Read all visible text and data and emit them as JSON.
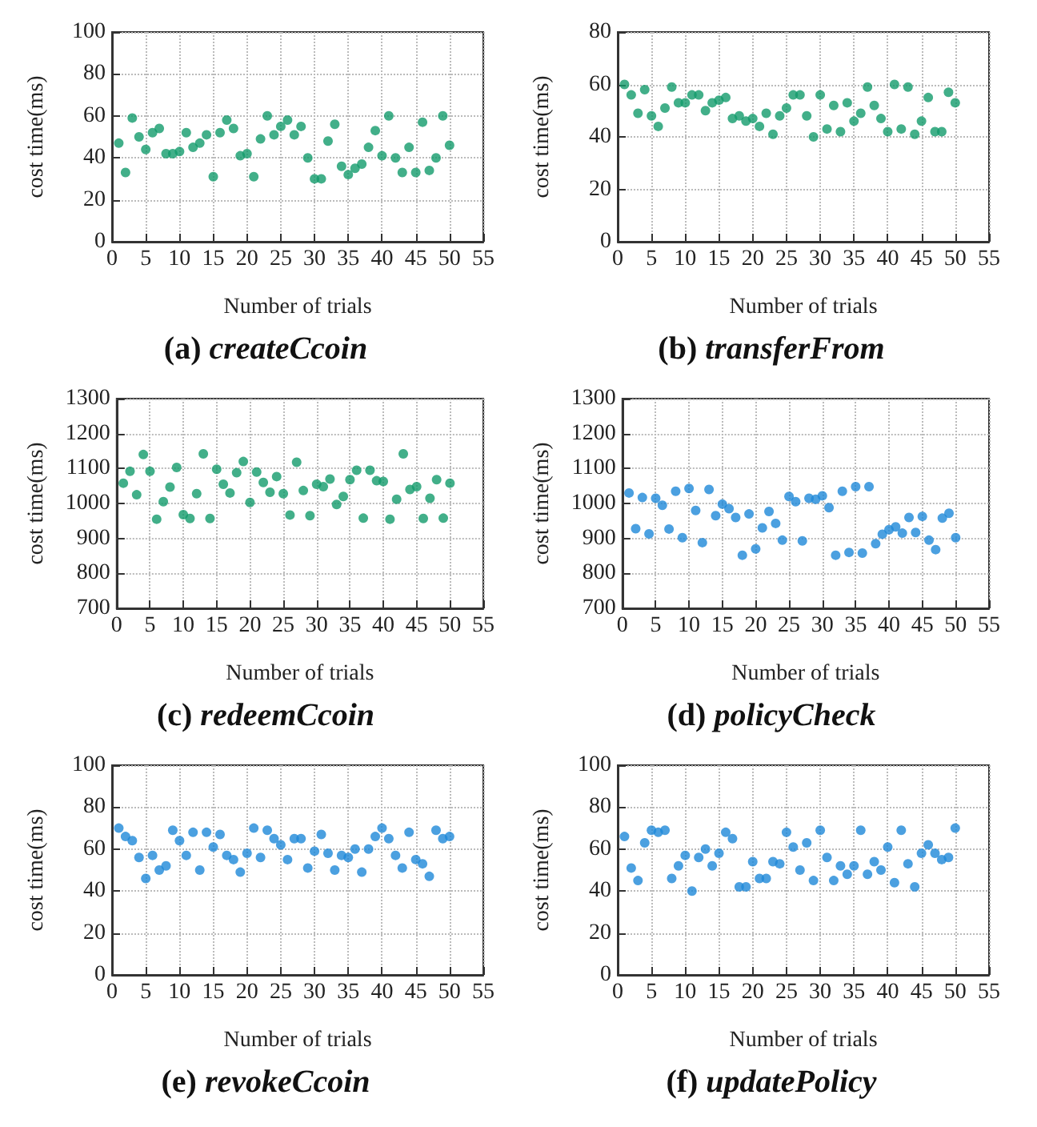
{
  "chart_data": [
    {
      "type": "scatter",
      "title": "(a) createCcoin",
      "xlabel": "Number of trials",
      "ylabel": "cost time(ms)",
      "xlim": [
        0,
        55
      ],
      "xticks": [
        0,
        5,
        10,
        15,
        20,
        25,
        30,
        35,
        40,
        45,
        50,
        55
      ],
      "ylim": [
        0,
        100
      ],
      "yticks": [
        0,
        20,
        40,
        60,
        80,
        100
      ],
      "grid": true,
      "marker": "circle",
      "x": [
        1,
        2,
        3,
        4,
        5,
        6,
        7,
        8,
        9,
        10,
        11,
        12,
        13,
        14,
        15,
        16,
        17,
        18,
        19,
        20,
        21,
        22,
        23,
        24,
        25,
        26,
        27,
        28,
        29,
        30,
        31,
        32,
        33,
        34,
        35,
        36,
        37,
        38,
        39,
        40,
        41,
        42,
        43,
        44,
        45,
        46,
        47,
        48,
        49,
        50
      ],
      "series": [
        {
          "color": "#139b6b",
          "values": [
            47,
            33,
            59,
            50,
            44,
            52,
            54,
            42,
            42,
            43,
            52,
            45,
            47,
            51,
            31,
            52,
            58,
            54,
            41,
            42,
            31,
            49,
            60,
            51,
            55,
            58,
            51,
            55,
            40,
            30,
            30,
            48,
            56,
            36,
            32,
            35,
            37,
            45,
            53,
            41,
            60,
            40,
            33,
            45,
            33,
            57,
            34,
            40,
            60,
            46
          ]
        }
      ]
    },
    {
      "type": "scatter",
      "title": "(b) transferFrom",
      "xlabel": "Number of trials",
      "ylabel": "cost time(ms)",
      "xlim": [
        0,
        55
      ],
      "xticks": [
        0,
        5,
        10,
        15,
        20,
        25,
        30,
        35,
        40,
        45,
        50,
        55
      ],
      "ylim": [
        0,
        80
      ],
      "yticks": [
        0,
        20,
        40,
        60,
        80
      ],
      "grid": true,
      "marker": "circle",
      "x": [
        1,
        2,
        3,
        4,
        5,
        6,
        7,
        8,
        9,
        10,
        11,
        12,
        13,
        14,
        15,
        16,
        17,
        18,
        19,
        20,
        21,
        22,
        23,
        24,
        25,
        26,
        27,
        28,
        29,
        30,
        31,
        32,
        33,
        34,
        35,
        36,
        37,
        38,
        39,
        40,
        41,
        42,
        43,
        44,
        45,
        46,
        47,
        48,
        49,
        50
      ],
      "series": [
        {
          "color": "#139b6b",
          "values": [
            60,
            56,
            49,
            58,
            48,
            44,
            51,
            59,
            53,
            53,
            56,
            56,
            50,
            53,
            54,
            55,
            47,
            48,
            46,
            47,
            44,
            49,
            41,
            48,
            51,
            56,
            56,
            48,
            40,
            56,
            43,
            52,
            42,
            53,
            46,
            49,
            59,
            52,
            47,
            42,
            60,
            43,
            59,
            41,
            46,
            55,
            42,
            42,
            57,
            53
          ]
        }
      ]
    },
    {
      "type": "scatter",
      "title": "(c) redeemCcoin",
      "xlabel": "Number of trials",
      "ylabel": "cost time(ms)",
      "xlim": [
        0,
        55
      ],
      "xticks": [
        0,
        5,
        10,
        15,
        20,
        25,
        30,
        35,
        40,
        45,
        50,
        55
      ],
      "ylim": [
        700,
        1300
      ],
      "yticks": [
        700,
        800,
        900,
        1000,
        1100,
        1200,
        1300
      ],
      "grid": true,
      "marker": "circle",
      "x": [
        1,
        2,
        3,
        4,
        5,
        6,
        7,
        8,
        9,
        10,
        11,
        12,
        13,
        14,
        15,
        16,
        17,
        18,
        19,
        20,
        21,
        22,
        23,
        24,
        25,
        26,
        27,
        28,
        29,
        30,
        31,
        32,
        33,
        34,
        35,
        36,
        37,
        38,
        39,
        40,
        41,
        42,
        43,
        44,
        45,
        46,
        47,
        48,
        49,
        50
      ],
      "series": [
        {
          "color": "#139b6b",
          "values": [
            1058,
            1092,
            1025,
            1140,
            1092,
            955,
            1005,
            1047,
            1103,
            968,
            957,
            1028,
            1142,
            957,
            1098,
            1055,
            1030,
            1088,
            1120,
            1003,
            1090,
            1060,
            1032,
            1077,
            1028,
            967,
            1118,
            1037,
            965,
            1055,
            1048,
            1070,
            997,
            1020,
            1068,
            1095,
            958,
            1095,
            1065,
            1063,
            955,
            1012,
            1142,
            1040,
            1048,
            957,
            1015,
            1068,
            958,
            1058
          ]
        }
      ]
    },
    {
      "type": "scatter",
      "title": "(d) policyCheck",
      "xlabel": "Number of trials",
      "ylabel": "cost time(ms)",
      "xlim": [
        0,
        55
      ],
      "xticks": [
        0,
        5,
        10,
        15,
        20,
        25,
        30,
        35,
        40,
        45,
        50,
        55
      ],
      "ylim": [
        700,
        1300
      ],
      "yticks": [
        700,
        800,
        900,
        1000,
        1100,
        1200,
        1300
      ],
      "grid": true,
      "marker": "circle",
      "x": [
        1,
        2,
        3,
        4,
        5,
        6,
        7,
        8,
        9,
        10,
        11,
        12,
        13,
        14,
        15,
        16,
        17,
        18,
        19,
        20,
        21,
        22,
        23,
        24,
        25,
        26,
        27,
        28,
        29,
        30,
        31,
        32,
        33,
        34,
        35,
        36,
        37,
        38,
        39,
        40,
        41,
        42,
        43,
        44,
        45,
        46,
        47,
        48,
        49,
        50
      ],
      "series": [
        {
          "color": "#1e88d8",
          "values": [
            1030,
            928,
            1017,
            913,
            1015,
            995,
            927,
            1035,
            902,
            1043,
            980,
            888,
            1040,
            965,
            998,
            985,
            960,
            852,
            970,
            870,
            930,
            977,
            943,
            895,
            1020,
            1005,
            893,
            1015,
            1012,
            1022,
            988,
            852,
            1035,
            860,
            1048,
            858,
            1048,
            885,
            912,
            925,
            933,
            915,
            960,
            917,
            963,
            895,
            868,
            958,
            972,
            902
          ]
        }
      ]
    },
    {
      "type": "scatter",
      "title": "(e) revokeCcoin",
      "xlabel": "Number of trials",
      "ylabel": "cost time(ms)",
      "xlim": [
        0,
        55
      ],
      "xticks": [
        0,
        5,
        10,
        15,
        20,
        25,
        30,
        35,
        40,
        45,
        50,
        55
      ],
      "ylim": [
        0,
        100
      ],
      "yticks": [
        0,
        20,
        40,
        60,
        80,
        100
      ],
      "grid": true,
      "marker": "circle",
      "x": [
        1,
        2,
        3,
        4,
        5,
        6,
        7,
        8,
        9,
        10,
        11,
        12,
        13,
        14,
        15,
        16,
        17,
        18,
        19,
        20,
        21,
        22,
        23,
        24,
        25,
        26,
        27,
        28,
        29,
        30,
        31,
        32,
        33,
        34,
        35,
        36,
        37,
        38,
        39,
        40,
        41,
        42,
        43,
        44,
        45,
        46,
        47,
        48,
        49,
        50
      ],
      "series": [
        {
          "color": "#1e88d8",
          "values": [
            70,
            66,
            64,
            56,
            46,
            57,
            50,
            52,
            69,
            64,
            57,
            68,
            50,
            68,
            61,
            67,
            57,
            55,
            49,
            58,
            70,
            56,
            69,
            65,
            62,
            55,
            65,
            65,
            51,
            59,
            67,
            58,
            50,
            57,
            56,
            60,
            49,
            60,
            66,
            70,
            65,
            57,
            51,
            68,
            55,
            53,
            47,
            69,
            65,
            66
          ]
        }
      ]
    },
    {
      "type": "scatter",
      "title": "(f) updatePolicy",
      "xlabel": "Number of trials",
      "ylabel": "cost time(ms)",
      "xlim": [
        0,
        55
      ],
      "xticks": [
        0,
        5,
        10,
        15,
        20,
        25,
        30,
        35,
        40,
        45,
        50,
        55
      ],
      "ylim": [
        0,
        100
      ],
      "yticks": [
        0,
        20,
        40,
        60,
        80,
        100
      ],
      "grid": true,
      "marker": "circle",
      "x": [
        1,
        2,
        3,
        4,
        5,
        6,
        7,
        8,
        9,
        10,
        11,
        12,
        13,
        14,
        15,
        16,
        17,
        18,
        19,
        20,
        21,
        22,
        23,
        24,
        25,
        26,
        27,
        28,
        29,
        30,
        31,
        32,
        33,
        34,
        35,
        36,
        37,
        38,
        39,
        40,
        41,
        42,
        43,
        44,
        45,
        46,
        47,
        48,
        49,
        50
      ],
      "series": [
        {
          "color": "#1e88d8",
          "values": [
            66,
            51,
            45,
            63,
            69,
            68,
            69,
            46,
            52,
            57,
            40,
            56,
            60,
            52,
            58,
            68,
            65,
            42,
            42,
            54,
            46,
            46,
            54,
            53,
            68,
            61,
            50,
            63,
            45,
            69,
            56,
            45,
            52,
            48,
            52,
            69,
            48,
            54,
            50,
            61,
            44,
            69,
            53,
            42,
            58,
            62,
            58,
            55,
            56,
            70
          ]
        }
      ]
    }
  ]
}
